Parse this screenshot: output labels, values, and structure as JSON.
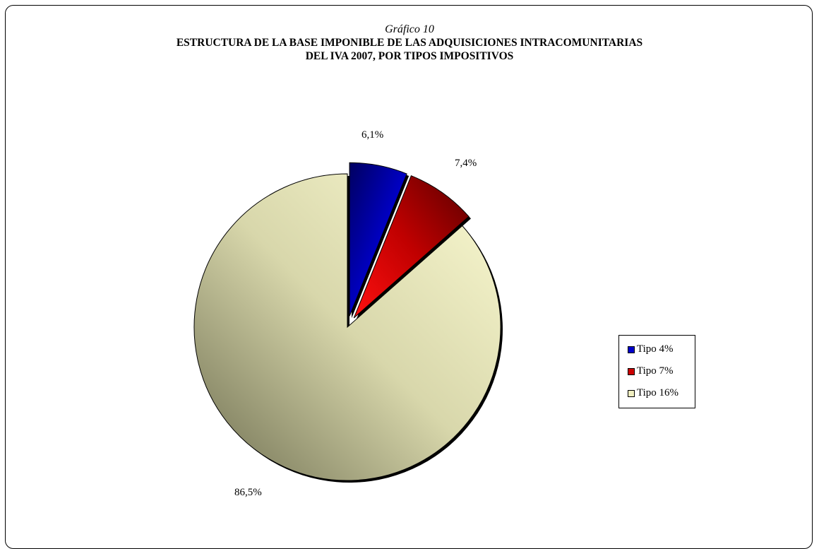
{
  "chart_data": {
    "type": "pie",
    "subtitle": "Gráfico 10",
    "title_lines": [
      "ESTRUCTURA DE LA BASE IMPONIBLE DE LAS ADQUISICIONES INTRACOMUNITARIAS",
      "DEL IVA 2007, POR TIPOS IMPOSITIVOS"
    ],
    "categories": [
      "Tipo 4%",
      "Tipo 7%",
      "Tipo 16%"
    ],
    "values": [
      6.1,
      7.4,
      86.5
    ],
    "data_labels": [
      "6,1%",
      "7,4%",
      "86,5%"
    ],
    "colors": [
      "#0000cc",
      "#cc0000",
      "#efeec0"
    ],
    "exploded": [
      true,
      true,
      false
    ],
    "legend_position": "right"
  }
}
